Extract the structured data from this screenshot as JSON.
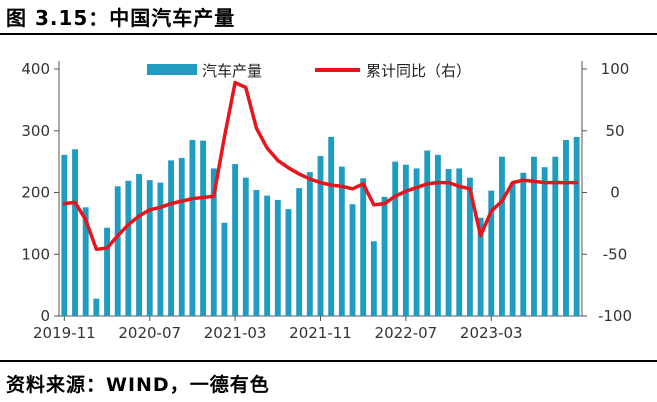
{
  "title": "图 3.15：中国汽车产量",
  "source": "资料来源：WIND，一德有色",
  "chart_data": {
    "type": "bar+line",
    "categories": [
      "2019-11",
      "2019-12",
      "2020-01",
      "2020-02",
      "2020-03",
      "2020-04",
      "2020-05",
      "2020-06",
      "2020-07",
      "2020-08",
      "2020-09",
      "2020-10",
      "2020-11",
      "2020-12",
      "2021-01",
      "2021-02",
      "2021-03",
      "2021-04",
      "2021-05",
      "2021-06",
      "2021-07",
      "2021-08",
      "2021-09",
      "2021-10",
      "2021-11",
      "2021-12",
      "2022-01",
      "2022-02",
      "2022-03",
      "2022-04",
      "2022-05",
      "2022-06",
      "2022-07",
      "2022-08",
      "2022-09",
      "2022-10",
      "2022-11",
      "2022-12",
      "2023-01",
      "2023-02",
      "2023-03",
      "2023-04",
      "2023-05",
      "2023-06",
      "2023-07",
      "2023-08",
      "2023-09",
      "2023-10",
      "2023-11"
    ],
    "x_tick_labels": [
      "2019-11",
      "2020-07",
      "2021-03",
      "2021-11",
      "2022-07",
      "2023-03"
    ],
    "series": [
      {
        "name": "汽车产量",
        "type": "bar",
        "axis": "left",
        "color": "#1f9cc0",
        "values": [
          261,
          270,
          176,
          28,
          143,
          210,
          219,
          230,
          220,
          216,
          252,
          256,
          285,
          284,
          239,
          151,
          246,
          224,
          204,
          195,
          188,
          173,
          207,
          233,
          259,
          290,
          242,
          181,
          223,
          121,
          193,
          250,
          245,
          239,
          268,
          261,
          238,
          239,
          224,
          159,
          203,
          258,
          216,
          232,
          258,
          241,
          258,
          285,
          290
        ]
      },
      {
        "name": "累计同比（右）",
        "type": "line",
        "axis": "right",
        "color": "#e8141c",
        "values": [
          -9,
          -8,
          -22,
          -46,
          -45,
          -35,
          -26,
          -19,
          -14,
          -12,
          -9,
          -7,
          -5,
          -4,
          -3,
          45,
          89,
          85,
          52,
          36,
          26,
          20,
          15,
          11,
          8,
          6,
          5,
          3,
          7,
          -10,
          -9,
          -3,
          1,
          4,
          7,
          8,
          8,
          5,
          3,
          -35,
          -15,
          -7,
          8,
          10,
          9,
          8,
          8,
          8,
          8
        ]
      }
    ],
    "y_left": {
      "min": 0,
      "max": 400,
      "ticks": [
        0,
        100,
        200,
        300,
        400
      ]
    },
    "y_right": {
      "min": -100,
      "max": 100,
      "ticks": [
        -100,
        -50,
        0,
        50,
        100
      ]
    },
    "legend_position": "top-center"
  }
}
